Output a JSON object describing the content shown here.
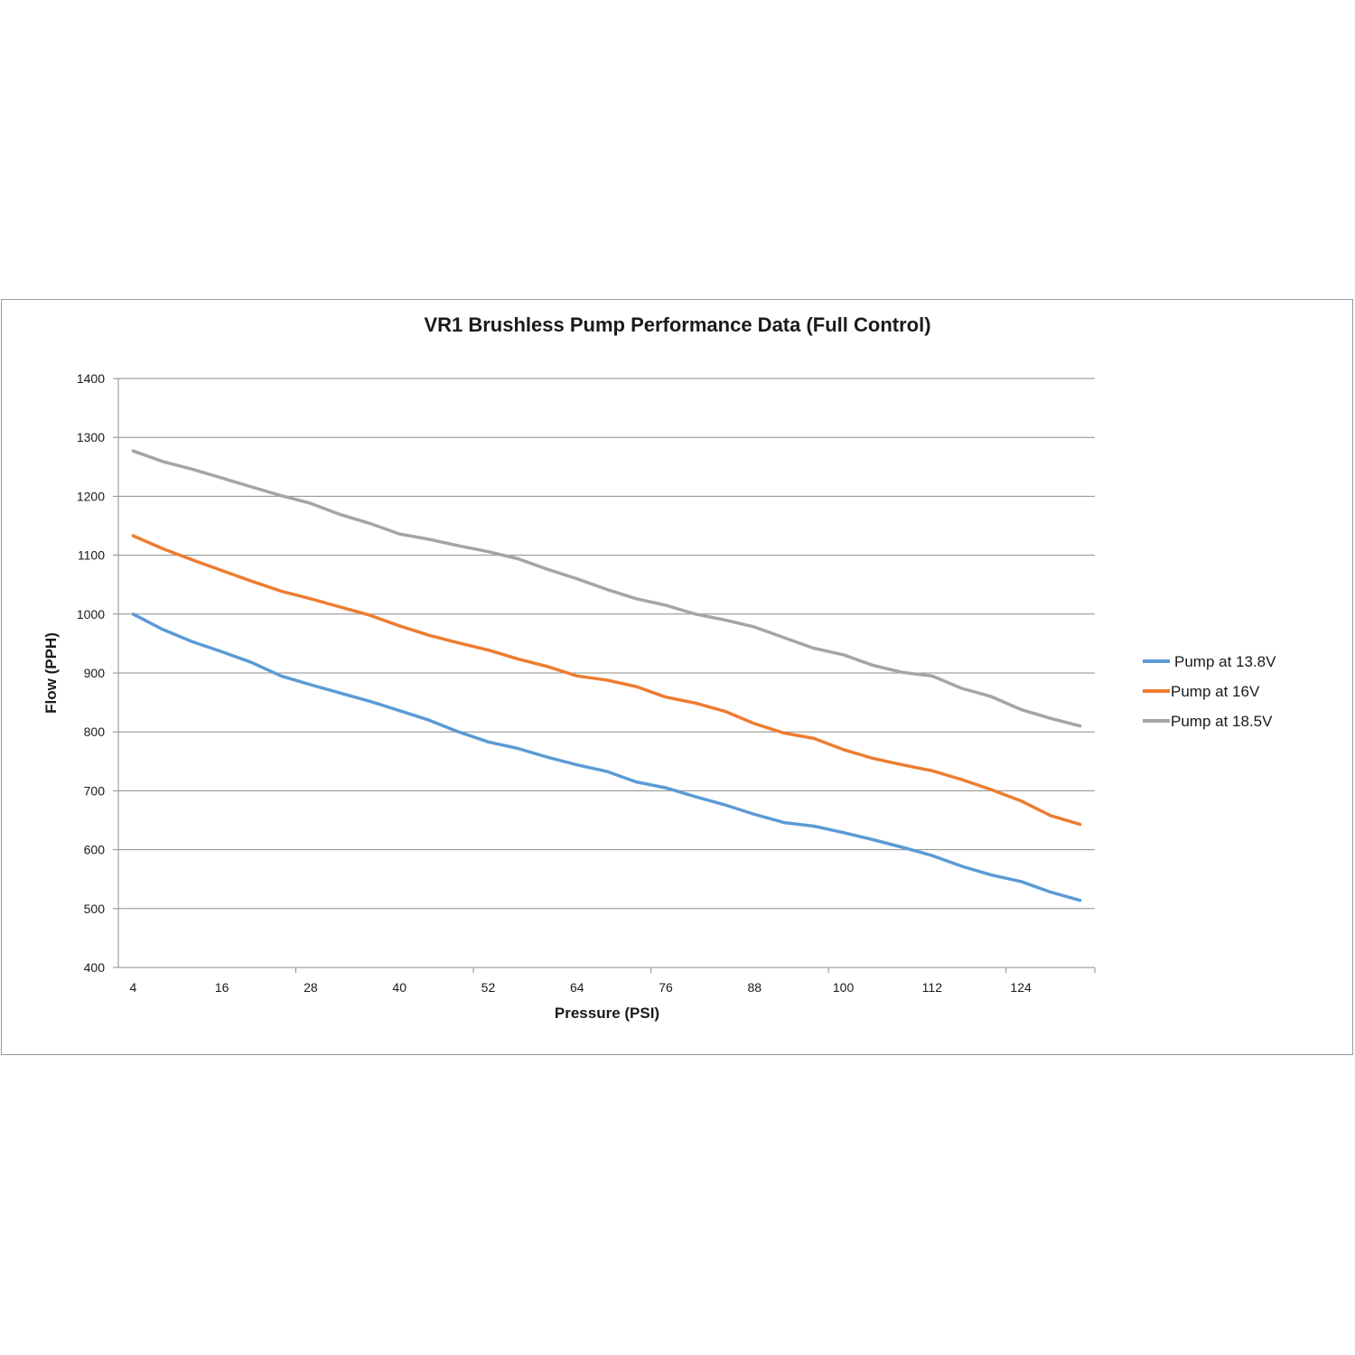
{
  "chart_data": {
    "type": "line",
    "title": "VR1 Brushless Pump Performance Data (Full Control)",
    "xlabel": "Pressure (PSI)",
    "ylabel": "Flow (PPH)",
    "ylim": [
      400,
      1400
    ],
    "yticks": [
      400,
      500,
      600,
      700,
      800,
      900,
      1000,
      1100,
      1200,
      1300,
      1400
    ],
    "xlim": [
      2,
      134
    ],
    "xtick_labels": [
      4,
      16,
      28,
      40,
      52,
      64,
      76,
      88,
      100,
      112,
      124
    ],
    "grid": true,
    "legend_position": "right",
    "x": [
      4,
      8,
      12,
      16,
      20,
      24,
      28,
      32,
      36,
      40,
      44,
      48,
      52,
      56,
      60,
      64,
      68,
      72,
      76,
      80,
      84,
      88,
      92,
      96,
      100,
      104,
      108,
      112,
      116,
      120,
      124,
      128,
      132
    ],
    "series": [
      {
        "name": "Pump at 13.8V",
        "color": "#5b9bd5",
        "values": [
          1000,
          974,
          953,
          936,
          918,
          895,
          880,
          866,
          852,
          836,
          820,
          800,
          783,
          772,
          757,
          744,
          733,
          715,
          705,
          690,
          676,
          660,
          646,
          640,
          629,
          617,
          604,
          590,
          572,
          557,
          546,
          528,
          514
        ]
      },
      {
        "name": "Pump at 16V",
        "color": "#ed7d31",
        "values": [
          1133,
          1111,
          1092,
          1074,
          1056,
          1039,
          1026,
          1012,
          998,
          980,
          964,
          951,
          939,
          924,
          911,
          895,
          888,
          877,
          859,
          849,
          835,
          814,
          798,
          789,
          770,
          755,
          744,
          734,
          719,
          702,
          683,
          658,
          643
        ]
      },
      {
        "name": "Pump at 18.5V",
        "color": "#a5a5a5",
        "values": [
          1277,
          1259,
          1246,
          1231,
          1216,
          1201,
          1188,
          1169,
          1154,
          1136,
          1127,
          1116,
          1106,
          1094,
          1076,
          1060,
          1042,
          1026,
          1015,
          1000,
          990,
          978,
          960,
          942,
          931,
          913,
          901,
          895,
          874,
          860,
          838,
          823,
          810
        ]
      }
    ]
  }
}
